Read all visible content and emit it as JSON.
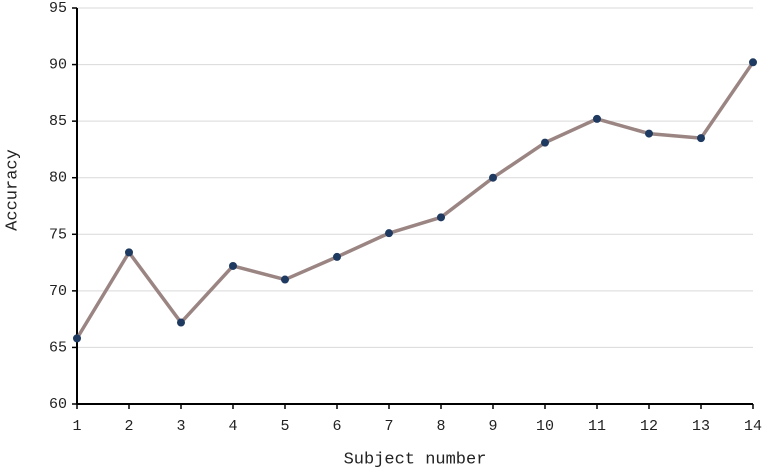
{
  "chart_data": {
    "type": "line",
    "x_label": "Subject number",
    "y_label": "Accuracy",
    "x": [
      1,
      2,
      3,
      4,
      5,
      6,
      7,
      8,
      9,
      10,
      11,
      12,
      13,
      14
    ],
    "series": [
      {
        "color": "#9b8583",
        "marker_color": "#1f3a60",
        "values": [
          65.8,
          73.4,
          67.2,
          72.2,
          71.0,
          73.0,
          75.1,
          76.5,
          80.0,
          83.1,
          85.2,
          83.9,
          83.5,
          90.2
        ]
      }
    ],
    "xlim": [
      1,
      14
    ],
    "xticks": [
      1,
      2,
      3,
      4,
      5,
      6,
      7,
      8,
      9,
      10,
      11,
      12,
      13,
      14
    ],
    "ylim": [
      60,
      95
    ],
    "yticks": [
      60,
      65,
      70,
      75,
      80,
      85,
      90,
      95
    ],
    "grid": true
  }
}
